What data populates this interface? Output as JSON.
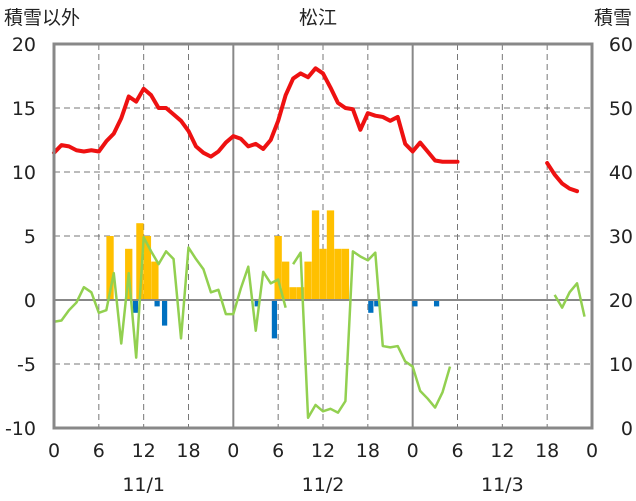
{
  "chart_data": {
    "type": "line",
    "title": "松江",
    "left_axis_label": "積雪以外",
    "right_axis_label": "積雪",
    "ylim_left": [
      -10,
      20
    ],
    "ylim_right": [
      0,
      60
    ],
    "yticks_left": [
      "20",
      "15",
      "10",
      "5",
      "0",
      "-5",
      "-10"
    ],
    "yticks_right": [
      "60",
      "50",
      "40",
      "30",
      "20",
      "10",
      "0"
    ],
    "xlim_hours": [
      0,
      72
    ],
    "xticks": [
      "0",
      "6",
      "12",
      "18",
      "0",
      "6",
      "12",
      "18",
      "0",
      "6",
      "12",
      "18",
      "0"
    ],
    "date_labels": [
      {
        "label": "11/1",
        "hour": 12
      },
      {
        "label": "11/2",
        "hour": 36
      },
      {
        "label": "11/3",
        "hour": 60
      }
    ],
    "grid": "dashed",
    "colors": {
      "temperature": "#ee1111",
      "green_series": "#92d050",
      "bar_positive": "#ffc000",
      "bar_negative": "#0070c0",
      "frame": "#888888"
    },
    "temperature": {
      "segments": [
        [
          [
            0,
            11.5
          ],
          [
            1,
            12.1
          ],
          [
            2,
            12.0
          ],
          [
            3,
            11.7
          ],
          [
            4,
            11.6
          ],
          [
            5,
            11.7
          ],
          [
            6,
            11.6
          ],
          [
            7,
            12.4
          ],
          [
            8,
            13.0
          ],
          [
            9,
            14.2
          ],
          [
            10,
            15.9
          ],
          [
            11,
            15.5
          ],
          [
            12,
            16.5
          ],
          [
            13,
            16.0
          ],
          [
            14,
            15.0
          ],
          [
            15,
            15.0
          ],
          [
            16,
            14.5
          ],
          [
            17,
            14.0
          ],
          [
            18,
            13.2
          ],
          [
            19,
            12.0
          ],
          [
            20,
            11.5
          ],
          [
            21,
            11.2
          ],
          [
            22,
            11.6
          ],
          [
            23,
            12.3
          ],
          [
            24,
            12.8
          ],
          [
            25,
            12.6
          ],
          [
            26,
            12.0
          ],
          [
            27,
            12.2
          ],
          [
            28,
            11.8
          ],
          [
            29,
            12.5
          ],
          [
            30,
            14.0
          ],
          [
            31,
            16.0
          ],
          [
            32,
            17.3
          ],
          [
            33,
            17.7
          ],
          [
            34,
            17.4
          ],
          [
            35,
            18.1
          ],
          [
            36,
            17.7
          ],
          [
            37,
            16.6
          ],
          [
            38,
            15.4
          ],
          [
            39,
            15.0
          ],
          [
            40,
            14.9
          ],
          [
            41,
            13.3
          ],
          [
            42,
            14.6
          ],
          [
            43,
            14.4
          ],
          [
            44,
            14.3
          ],
          [
            45,
            14.0
          ],
          [
            46,
            14.3
          ],
          [
            47,
            12.2
          ],
          [
            48,
            11.6
          ],
          [
            49,
            12.3
          ],
          [
            50,
            11.6
          ],
          [
            51,
            10.9
          ],
          [
            52,
            10.8
          ],
          [
            53,
            10.8
          ],
          [
            54,
            10.8
          ]
        ],
        [
          [
            66,
            10.7
          ],
          [
            67,
            9.8
          ],
          [
            68,
            9.1
          ],
          [
            69,
            8.7
          ],
          [
            70,
            8.5
          ]
        ]
      ]
    },
    "green_series": {
      "segments": [
        [
          [
            0,
            -1.7
          ],
          [
            1,
            -1.6
          ],
          [
            2,
            -0.8
          ],
          [
            3,
            -0.2
          ],
          [
            4,
            1.0
          ],
          [
            5,
            0.6
          ],
          [
            6,
            -1.0
          ],
          [
            7,
            -0.8
          ],
          [
            8,
            2.1
          ],
          [
            9,
            -3.4
          ],
          [
            10,
            2.1
          ],
          [
            11,
            -4.5
          ],
          [
            12,
            4.9
          ],
          [
            13,
            3.8
          ],
          [
            14,
            2.8
          ],
          [
            15,
            3.8
          ],
          [
            16,
            3.2
          ],
          [
            17,
            -3.0
          ],
          [
            18,
            4.1
          ],
          [
            19,
            3.2
          ],
          [
            20,
            2.4
          ],
          [
            21,
            0.6
          ],
          [
            22,
            0.8
          ],
          [
            23,
            -1.1
          ],
          [
            24,
            -1.1
          ],
          [
            25,
            0.9
          ],
          [
            26,
            2.6
          ],
          [
            27,
            -2.4
          ],
          [
            28,
            2.2
          ],
          [
            29,
            1.3
          ],
          [
            30,
            1.6
          ],
          [
            31,
            -0.6
          ]
        ],
        [
          [
            32,
            2.8
          ],
          [
            33,
            3.7
          ],
          [
            34,
            -9.2
          ],
          [
            35,
            -8.2
          ],
          [
            36,
            -8.7
          ],
          [
            37,
            -8.5
          ],
          [
            38,
            -8.8
          ],
          [
            39,
            -7.9
          ],
          [
            40,
            3.8
          ],
          [
            41,
            3.4
          ],
          [
            42,
            3.1
          ],
          [
            43,
            3.7
          ],
          [
            44,
            -3.6
          ],
          [
            45,
            -3.7
          ],
          [
            46,
            -3.6
          ],
          [
            47,
            -4.8
          ],
          [
            48,
            -5.2
          ],
          [
            49,
            -7.1
          ],
          [
            50,
            -7.7
          ],
          [
            51,
            -8.4
          ],
          [
            52,
            -7.2
          ],
          [
            53,
            -5.2
          ]
        ],
        [
          [
            67,
            0.4
          ],
          [
            68,
            -0.6
          ],
          [
            69,
            0.6
          ],
          [
            70,
            1.3
          ],
          [
            71,
            -1.3
          ]
        ]
      ]
    },
    "bars": [
      {
        "hour": 7.5,
        "value": 5
      },
      {
        "hour": 10,
        "value": 4
      },
      {
        "hour": 11.5,
        "value": 6
      },
      {
        "hour": 12.5,
        "value": 5
      },
      {
        "hour": 13.5,
        "value": 3
      },
      {
        "hour": 24.5,
        "value": 0
      },
      {
        "hour": 30,
        "value": 5
      },
      {
        "hour": 31,
        "value": 3
      },
      {
        "hour": 32,
        "value": 1
      },
      {
        "hour": 33,
        "value": 1
      },
      {
        "hour": 34,
        "value": 3
      },
      {
        "hour": 35,
        "value": 7
      },
      {
        "hour": 36,
        "value": 4
      },
      {
        "hour": 37,
        "value": 7
      },
      {
        "hour": 38,
        "value": 4
      },
      {
        "hour": 39,
        "value": 4
      }
    ],
    "bars_negative": [
      {
        "hour": 10.9,
        "value": -1.0
      },
      {
        "hour": 13.8,
        "value": -0.5
      },
      {
        "hour": 14.8,
        "value": -2.0
      },
      {
        "hour": 27.2,
        "value": -0.5
      },
      {
        "hour": 29.5,
        "value": -3.0
      },
      {
        "hour": 42.4,
        "value": -1.0
      },
      {
        "hour": 43.2,
        "value": -0.5
      },
      {
        "hour": 48.3,
        "value": -0.5
      },
      {
        "hour": 51.2,
        "value": -0.5
      }
    ]
  }
}
